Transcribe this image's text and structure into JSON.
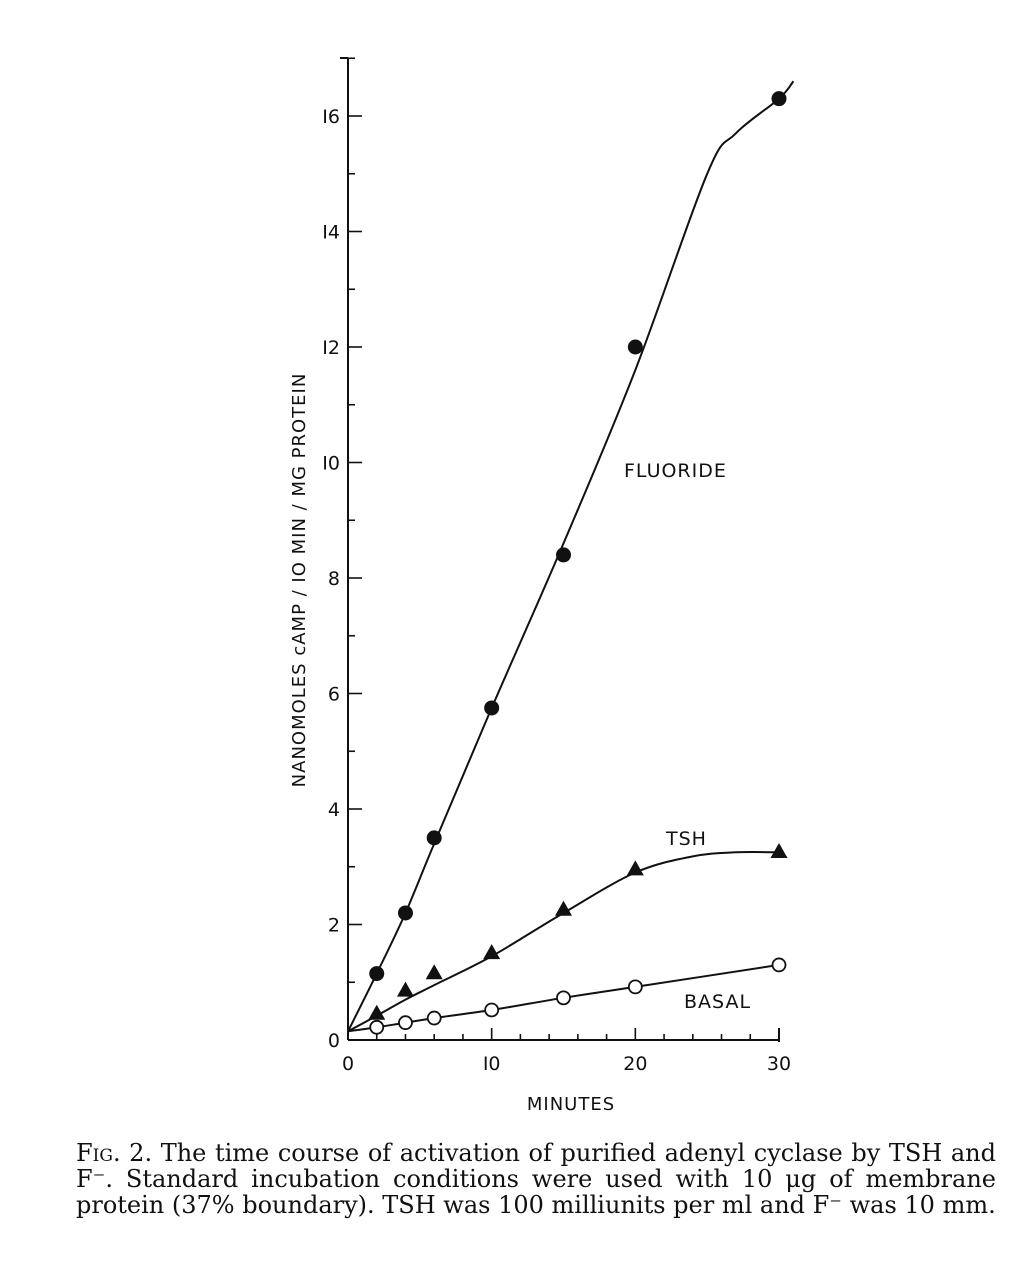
{
  "chart_data": {
    "type": "line",
    "xlabel": "MINUTES",
    "ylabel": "NANOMOLES cAMP / IO MIN / MG PROTEIN",
    "xlim": [
      0,
      30
    ],
    "ylim": [
      0,
      17
    ],
    "x_ticks": [
      0,
      10,
      20,
      30
    ],
    "x_tick_labels": [
      "0",
      "I0",
      "20",
      "30"
    ],
    "y_ticks": [
      0,
      2,
      4,
      6,
      8,
      10,
      12,
      14,
      16
    ],
    "y_tick_labels": [
      "0",
      "2",
      "4",
      "6",
      "8",
      "I0",
      "I2",
      "I4",
      "I6"
    ],
    "grid": false,
    "series": [
      {
        "name": "FLUORIDE",
        "marker": "filled-circle",
        "points": [
          [
            2,
            1.15
          ],
          [
            4,
            2.2
          ],
          [
            6,
            3.5
          ],
          [
            10,
            5.75
          ],
          [
            15,
            8.4
          ],
          [
            20,
            12.0
          ],
          [
            30,
            16.3
          ]
        ],
        "curve": [
          [
            0,
            0.15
          ],
          [
            2,
            1.15
          ],
          [
            4,
            2.2
          ],
          [
            6,
            3.4
          ],
          [
            10,
            5.75
          ],
          [
            15,
            8.6
          ],
          [
            20,
            11.6
          ],
          [
            25,
            15.0
          ],
          [
            27,
            15.7
          ],
          [
            30,
            16.3
          ],
          [
            31,
            16.6
          ]
        ]
      },
      {
        "name": "TSH",
        "marker": "filled-triangle",
        "points": [
          [
            2,
            0.45
          ],
          [
            4,
            0.85
          ],
          [
            6,
            1.15
          ],
          [
            10,
            1.5
          ],
          [
            15,
            2.25
          ],
          [
            20,
            2.95
          ],
          [
            30,
            3.25
          ]
        ],
        "curve": [
          [
            0,
            0.15
          ],
          [
            2,
            0.42
          ],
          [
            4,
            0.7
          ],
          [
            6,
            0.95
          ],
          [
            10,
            1.45
          ],
          [
            15,
            2.2
          ],
          [
            20,
            2.9
          ],
          [
            24,
            3.18
          ],
          [
            27,
            3.25
          ],
          [
            30,
            3.25
          ]
        ]
      },
      {
        "name": "BASAL",
        "marker": "open-circle",
        "points": [
          [
            2,
            0.22
          ],
          [
            4,
            0.3
          ],
          [
            6,
            0.38
          ],
          [
            10,
            0.52
          ],
          [
            15,
            0.73
          ],
          [
            20,
            0.92
          ],
          [
            30,
            1.3
          ]
        ],
        "curve": [
          [
            0,
            0.15
          ],
          [
            2,
            0.22
          ],
          [
            4,
            0.3
          ],
          [
            6,
            0.38
          ],
          [
            10,
            0.52
          ],
          [
            15,
            0.73
          ],
          [
            20,
            0.92
          ],
          [
            30,
            1.3
          ]
        ]
      }
    ]
  },
  "caption": {
    "label": "Fig. 2.",
    "text": "The time course of activation of purified adenyl cyclase by TSH and F⁻. Standard incubation conditions were used with 10 μg of membrane protein (37% boundary). TSH was 100 milliunits per ml and F⁻ was 10 mm."
  }
}
